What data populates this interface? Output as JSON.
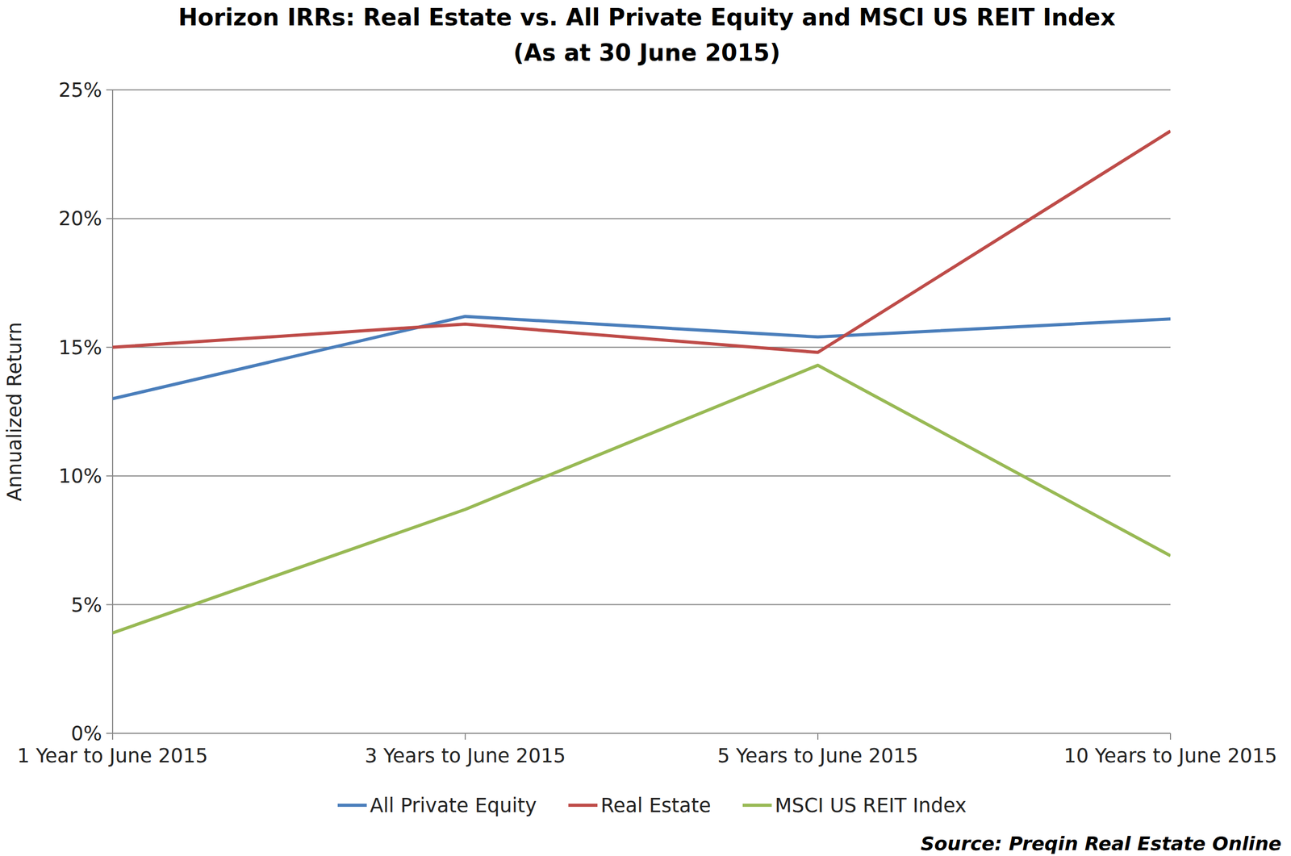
{
  "chart_data": {
    "type": "line",
    "title": "Horizon IRRs: Real Estate vs. All Private Equity and MSCI US REIT Index",
    "subtitle": "(As at 30 June 2015)",
    "y_label": "Annualized Return",
    "source": "Source: Preqin Real Estate Online",
    "categories": [
      "1 Year to June 2015",
      "3 Years to June 2015",
      "5 Years to June 2015",
      "10 Years to June 2015"
    ],
    "series": [
      {
        "name": "All Private Equity",
        "color": "#4a7ebb",
        "values": [
          13.0,
          16.2,
          15.4,
          16.1
        ]
      },
      {
        "name": "Real Estate",
        "color": "#be4b48",
        "values": [
          15.0,
          15.9,
          14.8,
          23.4
        ]
      },
      {
        "name": "MSCI US REIT Index",
        "color": "#98b954",
        "values": [
          3.9,
          8.7,
          14.3,
          6.9
        ]
      }
    ],
    "ylim": [
      0,
      25
    ],
    "yticks": [
      {
        "value": 0,
        "label": "0%"
      },
      {
        "value": 5,
        "label": "5%"
      },
      {
        "value": 10,
        "label": "10%"
      },
      {
        "value": 15,
        "label": "15%"
      },
      {
        "value": 20,
        "label": "20%"
      },
      {
        "value": 25,
        "label": "25%"
      }
    ],
    "grid": true,
    "legend": "bottom"
  }
}
